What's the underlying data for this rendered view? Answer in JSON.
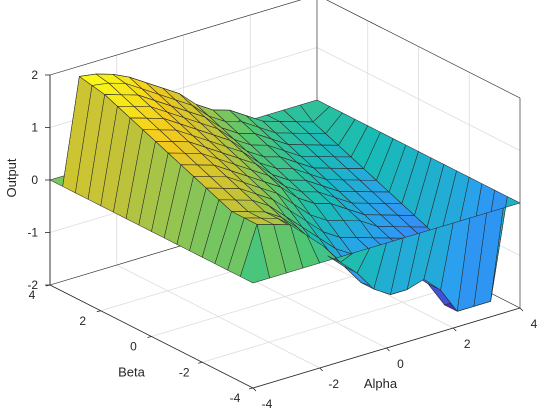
{
  "chart_data": {
    "type": "surface",
    "title": "",
    "xlabel": "Alpha",
    "ylabel": "Beta",
    "zlabel": "Output",
    "xlim": [
      -4,
      4
    ],
    "ylim": [
      -4,
      4
    ],
    "zlim": [
      -2,
      2
    ],
    "x_ticks": [
      "-4",
      "-2",
      "0",
      "2",
      "4"
    ],
    "y_ticks": [
      "-4",
      "-2",
      "0",
      "2",
      "4"
    ],
    "z_ticks": [
      "-2",
      "-1",
      "0",
      "1",
      "2"
    ],
    "grid": true,
    "colormap": "parula",
    "colormap_stops": [
      "#3e26a8",
      "#4669f5",
      "#2b9ef2",
      "#18bcb6",
      "#4fc774",
      "#c2c338",
      "#f2c81f",
      "#f9fb15"
    ],
    "x": [
      -4,
      -3.5,
      -3,
      -2.5,
      -2,
      -1.5,
      -1,
      -0.5,
      0,
      0.5,
      1,
      1.5,
      2,
      2.5,
      3,
      3.5,
      4
    ],
    "y": [
      -4,
      -3.5,
      -3,
      -2.5,
      -2,
      -1.5,
      -1,
      -0.5,
      0,
      0.5,
      1,
      1.5,
      2,
      2.5,
      3,
      3.5,
      4
    ],
    "z_description": "Output is 0 on the outer boundary. Interior plateau follows a diagonal ridge structure: high (~2) where Alpha is low and Beta is high, decreasing to about -1.2 where Alpha is high and Beta is low, with an undulating central band.",
    "z": [
      [
        0,
        0,
        0,
        0,
        0,
        0,
        0,
        0,
        0,
        0,
        0,
        0,
        0,
        0,
        0,
        0,
        0
      ],
      [
        0,
        0.9,
        0.8,
        0.7,
        0.4,
        0.1,
        -0.3,
        -0.6,
        -1.0,
        -1.2,
        -1.2,
        -1.1,
        -1.4,
        -1.9,
        -1.9,
        -1.9,
        0
      ],
      [
        0,
        0.9,
        0.8,
        0.7,
        0.4,
        0.1,
        -0.3,
        -0.6,
        -1.0,
        -1.2,
        -1.2,
        -1.1,
        -1.4,
        -1.9,
        -1.9,
        -1.9,
        0
      ],
      [
        0,
        0.9,
        0.8,
        0.7,
        0.5,
        0.2,
        -0.2,
        -0.5,
        -0.8,
        -1.0,
        -1.0,
        -1.0,
        -1.2,
        -1.5,
        -1.6,
        -1.7,
        0
      ],
      [
        0,
        1.0,
        0.9,
        0.8,
        0.6,
        0.3,
        0.0,
        -0.3,
        -0.6,
        -0.8,
        -0.8,
        -0.9,
        -1.0,
        -1.2,
        -1.3,
        -1.4,
        0
      ],
      [
        0,
        1.1,
        1.0,
        0.9,
        0.7,
        0.5,
        0.2,
        -0.1,
        -0.4,
        -0.6,
        -0.7,
        -0.8,
        -0.9,
        -1.0,
        -1.1,
        -1.2,
        0
      ],
      [
        0,
        1.2,
        1.1,
        1.0,
        0.8,
        0.6,
        0.4,
        0.1,
        -0.2,
        -0.4,
        -0.5,
        -0.6,
        -0.8,
        -0.9,
        -1.0,
        -1.1,
        0
      ],
      [
        0,
        1.3,
        1.2,
        1.1,
        0.9,
        0.7,
        0.5,
        0.3,
        0.0,
        -0.2,
        -0.3,
        -0.5,
        -0.7,
        -0.8,
        -0.9,
        -1.0,
        0
      ],
      [
        0,
        1.4,
        1.3,
        1.2,
        1.0,
        0.8,
        0.6,
        0.4,
        0.1,
        -0.1,
        -0.2,
        -0.4,
        -0.6,
        -0.7,
        -0.8,
        -0.9,
        0
      ],
      [
        0,
        1.5,
        1.4,
        1.3,
        1.1,
        0.9,
        0.7,
        0.5,
        0.2,
        0.0,
        -0.1,
        -0.3,
        -0.5,
        -0.6,
        -0.7,
        -0.8,
        0
      ],
      [
        0,
        1.6,
        1.5,
        1.4,
        1.2,
        1.0,
        0.8,
        0.6,
        0.3,
        0.1,
        0.0,
        -0.2,
        -0.4,
        -0.5,
        -0.6,
        -0.7,
        0
      ],
      [
        0,
        1.7,
        1.6,
        1.5,
        1.3,
        1.1,
        0.9,
        0.7,
        0.4,
        0.2,
        0.1,
        -0.1,
        -0.3,
        -0.4,
        -0.5,
        -0.6,
        0
      ],
      [
        0,
        1.8,
        1.7,
        1.6,
        1.4,
        1.2,
        1.0,
        0.8,
        0.5,
        0.3,
        0.2,
        0.0,
        -0.2,
        -0.3,
        -0.4,
        -0.5,
        0
      ],
      [
        0,
        1.9,
        1.8,
        1.7,
        1.5,
        1.3,
        1.1,
        0.9,
        0.6,
        0.4,
        0.3,
        0.1,
        -0.1,
        -0.2,
        -0.3,
        -0.4,
        0
      ],
      [
        0,
        1.95,
        1.9,
        1.8,
        1.6,
        1.4,
        1.2,
        1.0,
        0.7,
        0.5,
        0.4,
        0.2,
        0.0,
        -0.1,
        -0.2,
        -0.3,
        0
      ],
      [
        0,
        2.0,
        1.95,
        1.85,
        1.7,
        1.5,
        1.3,
        1.1,
        0.8,
        0.6,
        0.5,
        0.3,
        0.1,
        0.0,
        -0.1,
        -0.2,
        0
      ],
      [
        0,
        0,
        0,
        0,
        0,
        0,
        0,
        0,
        0,
        0,
        0,
        0,
        0,
        0,
        0,
        0,
        0
      ]
    ]
  }
}
